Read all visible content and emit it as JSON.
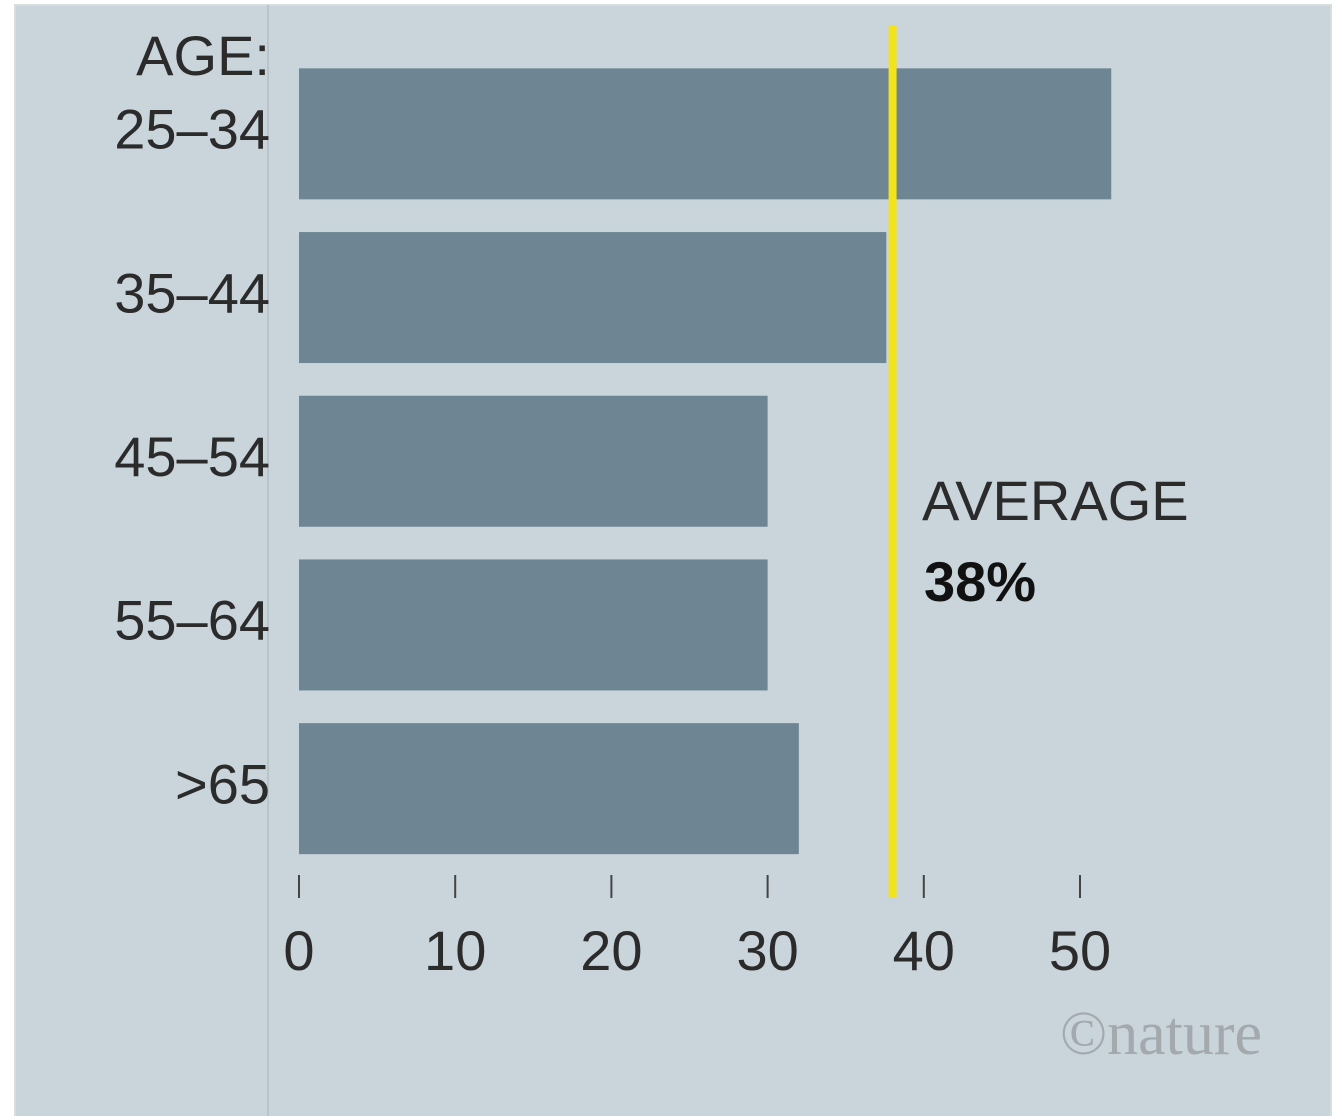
{
  "chart_data": {
    "type": "bar",
    "orientation": "horizontal",
    "y_label": "AGE:",
    "categories": [
      "25–34",
      "35–44",
      "45–54",
      "55–64",
      ">65"
    ],
    "values": [
      52,
      37.6,
      30,
      30,
      32
    ],
    "color": "#6e8593",
    "xlim": [
      0,
      60
    ],
    "xticks": [
      0,
      10,
      20,
      30,
      40,
      50
    ],
    "reference_line": {
      "label": "AVERAGE",
      "value": 38,
      "value_label": "38%",
      "color": "#f2e31b"
    },
    "credit": "©nature"
  }
}
